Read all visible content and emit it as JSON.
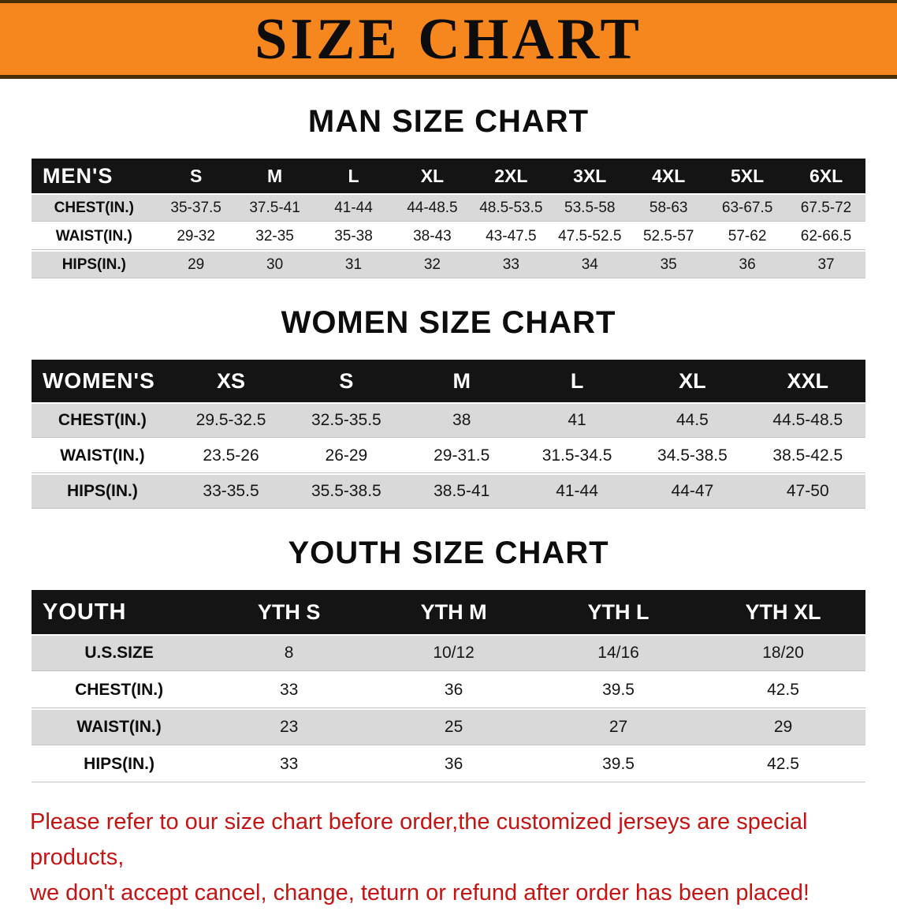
{
  "banner": {
    "title": "SIZE CHART"
  },
  "sections": [
    {
      "id": "men",
      "heading": "MAN SIZE CHART",
      "table": {
        "header": [
          "MEN'S",
          "S",
          "M",
          "L",
          "XL",
          "2XL",
          "3XL",
          "4XL",
          "5XL",
          "6XL"
        ],
        "rows": [
          {
            "label": "CHEST(IN.)",
            "values": [
              "35-37.5",
              "37.5-41",
              "41-44",
              "44-48.5",
              "48.5-53.5",
              "53.5-58",
              "58-63",
              "63-67.5",
              "67.5-72"
            ]
          },
          {
            "label": "WAIST(IN.)",
            "values": [
              "29-32",
              "32-35",
              "35-38",
              "38-43",
              "43-47.5",
              "47.5-52.5",
              "52.5-57",
              "57-62",
              "62-66.5"
            ]
          },
          {
            "label": "HIPS(IN.)",
            "values": [
              "29",
              "30",
              "31",
              "32",
              "33",
              "34",
              "35",
              "36",
              "37"
            ]
          }
        ]
      }
    },
    {
      "id": "women",
      "heading": "WOMEN SIZE CHART",
      "table": {
        "header": [
          "WOMEN'S",
          "XS",
          "S",
          "M",
          "L",
          "XL",
          "XXL"
        ],
        "rows": [
          {
            "label": "CHEST(IN.)",
            "values": [
              "29.5-32.5",
              "32.5-35.5",
              "38",
              "41",
              "44.5",
              "44.5-48.5"
            ]
          },
          {
            "label": "WAIST(IN.)",
            "values": [
              "23.5-26",
              "26-29",
              "29-31.5",
              "31.5-34.5",
              "34.5-38.5",
              "38.5-42.5"
            ]
          },
          {
            "label": "HIPS(IN.)",
            "values": [
              "33-35.5",
              "35.5-38.5",
              "38.5-41",
              "41-44",
              "44-47",
              "47-50"
            ]
          }
        ]
      }
    },
    {
      "id": "youth",
      "heading": "YOUTH SIZE CHART",
      "table": {
        "header": [
          "YOUTH",
          "YTH S",
          "YTH M",
          "YTH L",
          "YTH XL"
        ],
        "rows": [
          {
            "label": "U.S.SIZE",
            "values": [
              "8",
              "10/12",
              "14/16",
              "18/20"
            ]
          },
          {
            "label": "CHEST(IN.)",
            "values": [
              "33",
              "36",
              "39.5",
              "42.5"
            ]
          },
          {
            "label": "WAIST(IN.)",
            "values": [
              "23",
              "25",
              "27",
              "29"
            ]
          },
          {
            "label": "HIPS(IN.)",
            "values": [
              "33",
              "36",
              "39.5",
              "42.5"
            ]
          }
        ]
      }
    }
  ],
  "footer": {
    "line1": "Please refer to our size chart before order,the customized jerseys are special products,",
    "line2": "we don't accept cancel, change, teturn or refund after order has been placed!"
  },
  "colors": {
    "banner_bg": "#f6871f",
    "banner_edge": "#4a3008",
    "header_bg": "#141414",
    "row_alt": "#d9d9d9",
    "footer_text": "#c41414"
  }
}
